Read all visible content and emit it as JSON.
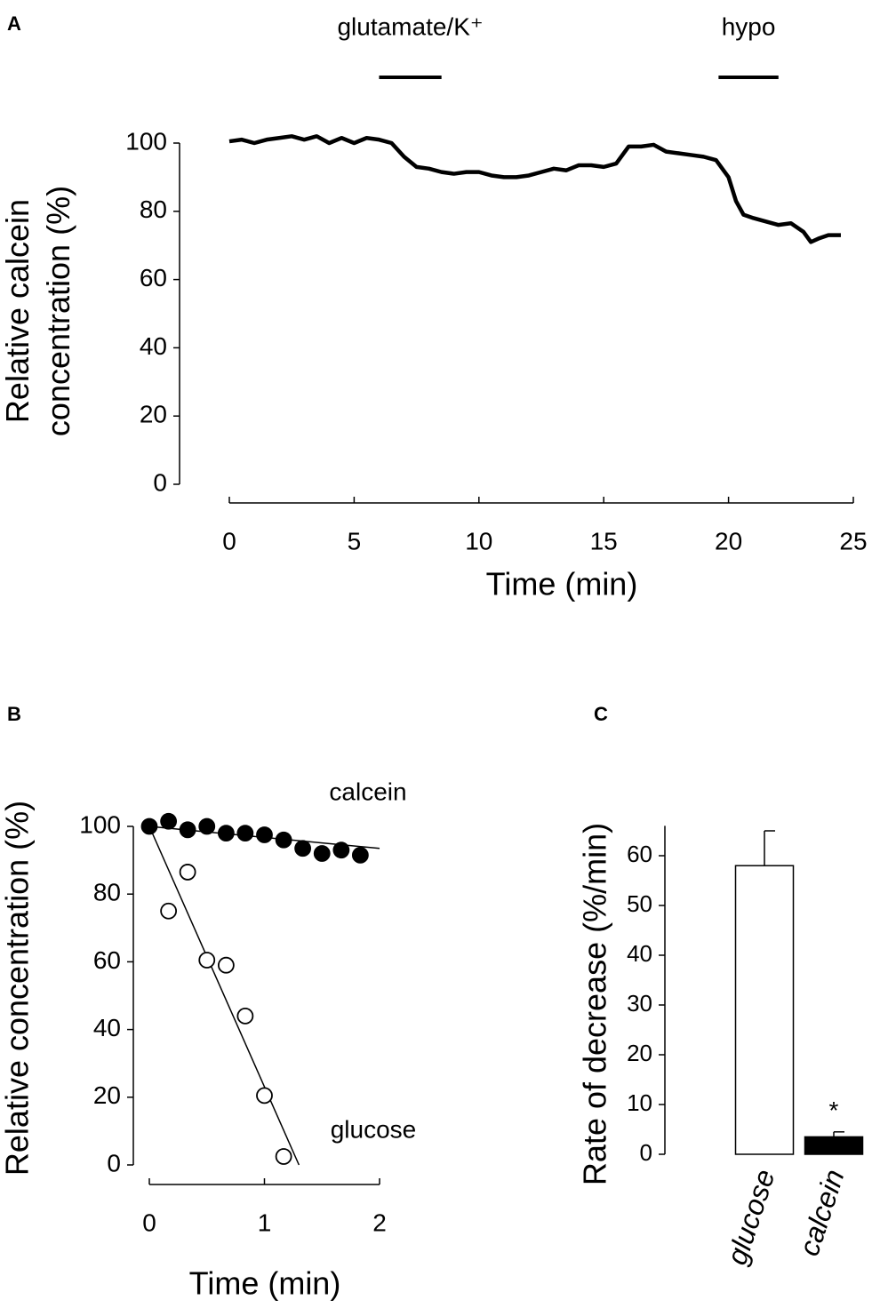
{
  "chart_data": [
    {
      "type": "line",
      "panel": "A",
      "x": [
        0,
        0.5,
        1,
        1.5,
        2,
        2.5,
        3,
        3.5,
        4,
        4.5,
        5,
        5.5,
        6,
        6.5,
        7,
        7.5,
        8,
        8.5,
        9,
        9.5,
        10,
        10.5,
        11,
        11.5,
        12,
        12.5,
        13,
        13.5,
        14,
        14.5,
        15,
        15.5,
        16,
        16.5,
        17,
        17.5,
        18,
        18.5,
        19,
        19.5,
        20,
        20.3,
        20.6,
        21,
        21.5,
        22,
        22.5,
        23,
        23.3,
        23.6,
        24,
        24.5
      ],
      "series": [
        {
          "color": "#000000",
          "values": [
            100.5,
            101,
            100,
            101,
            101.5,
            102,
            101,
            102,
            100,
            101.5,
            100,
            101.5,
            101,
            100,
            96,
            93,
            92.5,
            91.5,
            91,
            91.5,
            91.5,
            90.5,
            90,
            90,
            90.5,
            91.5,
            92.5,
            92,
            93.5,
            93.5,
            93,
            94,
            99,
            99,
            99.5,
            97.5,
            97,
            96.5,
            96,
            95,
            90,
            83,
            79,
            78,
            77,
            76,
            76.5,
            74,
            71,
            72,
            73,
            73
          ]
        }
      ],
      "xlim": [
        0,
        25
      ],
      "ylim": [
        0,
        100
      ],
      "xticks": [
        0,
        5,
        10,
        15,
        20,
        25
      ],
      "yticks": [
        0,
        20,
        40,
        60,
        80,
        100
      ],
      "xlabel": "Time (min)",
      "ylabel": [
        "Relative calcein",
        "concentration (%)"
      ],
      "annotations": [
        {
          "text": "glutamate/K⁺",
          "xrange": [
            6,
            8.5
          ]
        },
        {
          "text": "hypo",
          "xrange": [
            19.6,
            22
          ]
        }
      ]
    },
    {
      "type": "scatter",
      "panel": "B",
      "series": [
        {
          "name": "calcein",
          "fill": "#000000",
          "x": [
            0,
            0.167,
            0.333,
            0.5,
            0.667,
            0.833,
            1,
            1.167,
            1.333,
            1.5,
            1.667,
            1.833
          ],
          "values": [
            100,
            101.5,
            99,
            100,
            98,
            98,
            97.5,
            96,
            93.5,
            92,
            93,
            91.5
          ],
          "fit_x": [
            0,
            2
          ],
          "fit_y": [
            100,
            93.5
          ]
        },
        {
          "name": "glucose",
          "fill": "#ffffff",
          "x": [
            0.167,
            0.333,
            0.5,
            0.667,
            0.833,
            1,
            1.167
          ],
          "values": [
            75,
            86.5,
            60.5,
            59,
            44,
            20.5,
            2.5
          ],
          "fit_x": [
            0,
            1.3
          ],
          "fit_y": [
            100,
            0
          ]
        }
      ],
      "xlim": [
        0,
        2
      ],
      "ylim": [
        0,
        100
      ],
      "xticks": [
        0,
        1,
        2
      ],
      "yticks": [
        0,
        20,
        40,
        60,
        80,
        100
      ],
      "xlabel": "Time (min)",
      "ylabel": "Relative concentration (%)"
    },
    {
      "type": "bar",
      "panel": "C",
      "categories": [
        "glucose",
        "calcein"
      ],
      "values": [
        58,
        3.5
      ],
      "errors": [
        7,
        1
      ],
      "colors": [
        "#ffffff",
        "#000000"
      ],
      "ylim": [
        0,
        66
      ],
      "yticks": [
        0,
        10,
        20,
        30,
        40,
        50,
        60
      ],
      "ylabel": "Rate of decrease (%/min)",
      "annotation": "*"
    }
  ]
}
